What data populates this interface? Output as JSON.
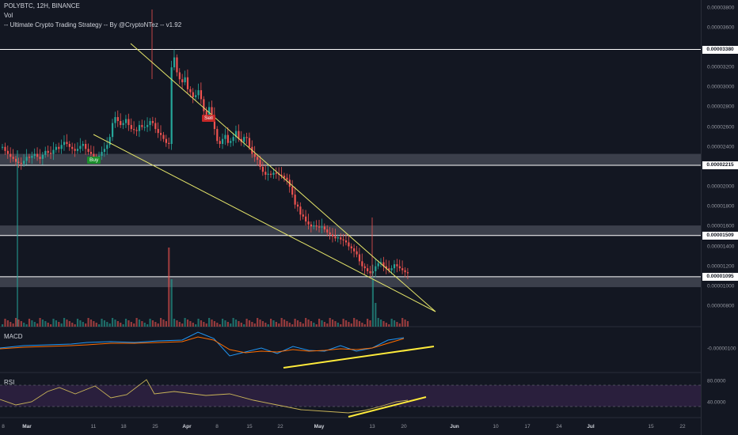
{
  "header": {
    "symbol_line": "POLYBTC, 12H, BINANCE",
    "vol_label": "Vol",
    "strategy_line": "-- Ultimate Crypto Trading Strategy -- By @CryptoNTez -- v1.92"
  },
  "panels": {
    "macd_label": "MACD",
    "rsi_label": "RSI"
  },
  "signals": {
    "buy": "Buy",
    "sell": "Sell"
  },
  "colors": {
    "background": "#131722",
    "up_candle": "#26a69a",
    "down_candle": "#ef5350",
    "trendline": "#e6e66a",
    "divergence_line": "#ffeb3b",
    "macd_line": "#2196f3",
    "signal_line": "#ff6d00",
    "rsi_line": "#c9b458",
    "rsi_band": "#2a1f3d",
    "level_line": "#ffffff",
    "zone": "#4a4e59"
  },
  "price_axis": {
    "ticks": [
      "0.00003800",
      "0.00003600",
      "0.00003200",
      "0.00003000",
      "0.00002800",
      "0.00002600",
      "0.00002400",
      "0.00002000",
      "0.00001800",
      "0.00001600",
      "0.00001400",
      "0.00001200",
      "0.00001000",
      "0.00000800"
    ],
    "tick_values": [
      3800,
      3600,
      3200,
      3000,
      2800,
      2600,
      2400,
      2000,
      1800,
      1600,
      1400,
      1200,
      1000,
      800
    ],
    "level_badges": [
      "0.00003380",
      "0.00002215",
      "0.00001509",
      "0.00001095"
    ],
    "level_values": [
      3380,
      2215,
      1509,
      1095
    ]
  },
  "macd_axis": {
    "tick": "-0.00000100"
  },
  "rsi_axis": {
    "ticks": [
      "80.0000",
      "40.0000"
    ]
  },
  "time_axis": {
    "labels": [
      "8",
      "Mar",
      "11",
      "18",
      "25",
      "Apr",
      "8",
      "15",
      "22",
      "May",
      "13",
      "20",
      "Jun",
      "10",
      "17",
      "24",
      "Jul",
      "15",
      "22"
    ],
    "month_labels": [
      "Mar",
      "Apr",
      "May",
      "Jun",
      "Jul"
    ],
    "bars_per_day": 2
  },
  "chart_data": {
    "type": "candlestick",
    "title": "POLYBTC, 12H, BINANCE",
    "closes_satoshi": [
      2400,
      2360,
      2330,
      2300,
      2280,
      2250,
      2240,
      2230,
      2260,
      2300,
      2290,
      2310,
      2330,
      2300,
      2280,
      2320,
      2360,
      2340,
      2330,
      2370,
      2400,
      2380,
      2420,
      2450,
      2430,
      2400,
      2380,
      2360,
      2380,
      2410,
      2430,
      2380,
      2350,
      2330,
      2300,
      2290,
      2310,
      2350,
      2380,
      2420,
      2500,
      2640,
      2700,
      2660,
      2620,
      2640,
      2680,
      2620,
      2580,
      2570,
      2560,
      2620,
      2600,
      2600,
      2620,
      2660,
      2640,
      2580,
      2540,
      2520,
      2480,
      2440,
      2430,
      3200,
      3300,
      3150,
      3080,
      3050,
      3100,
      2980,
      2950,
      2900,
      2920,
      2970,
      2880,
      2760,
      2700,
      2800,
      2720,
      2580,
      2460,
      2430,
      2480,
      2520,
      2440,
      2460,
      2500,
      2560,
      2480,
      2450,
      2500,
      2490,
      2400,
      2330,
      2300,
      2270,
      2200,
      2150,
      2120,
      2130,
      2120,
      2140,
      2130,
      2120,
      2110,
      2090,
      2070,
      2000,
      1920,
      1820,
      1800,
      1720,
      1700,
      1650,
      1620,
      1600,
      1610,
      1600,
      1590,
      1600,
      1570,
      1540,
      1520,
      1500,
      1480,
      1490,
      1470,
      1460,
      1440,
      1400,
      1380,
      1350,
      1320,
      1250,
      1200,
      1180,
      1150,
      1130,
      1150,
      1200,
      1230,
      1240,
      1200,
      1180,
      1160,
      1180,
      1220,
      1200,
      1180,
      1160,
      1140,
      1130
    ],
    "volume_spikes": {
      "feb_24": "high",
      "may_13": "high"
    },
    "resistance_levels": [
      3.38e-05,
      2.215e-05,
      1.509e-05,
      1.095e-05
    ],
    "zones": [
      [
        2.33e-05,
        2.215e-05
      ],
      [
        1.61e-05,
        1.509e-05
      ],
      [
        1.095e-05,
        9.9e-06
      ]
    ],
    "x_range": [
      "Feb 8",
      "Jul 22"
    ],
    "price_range": [
      7e-06,
      3.9e-05
    ]
  }
}
